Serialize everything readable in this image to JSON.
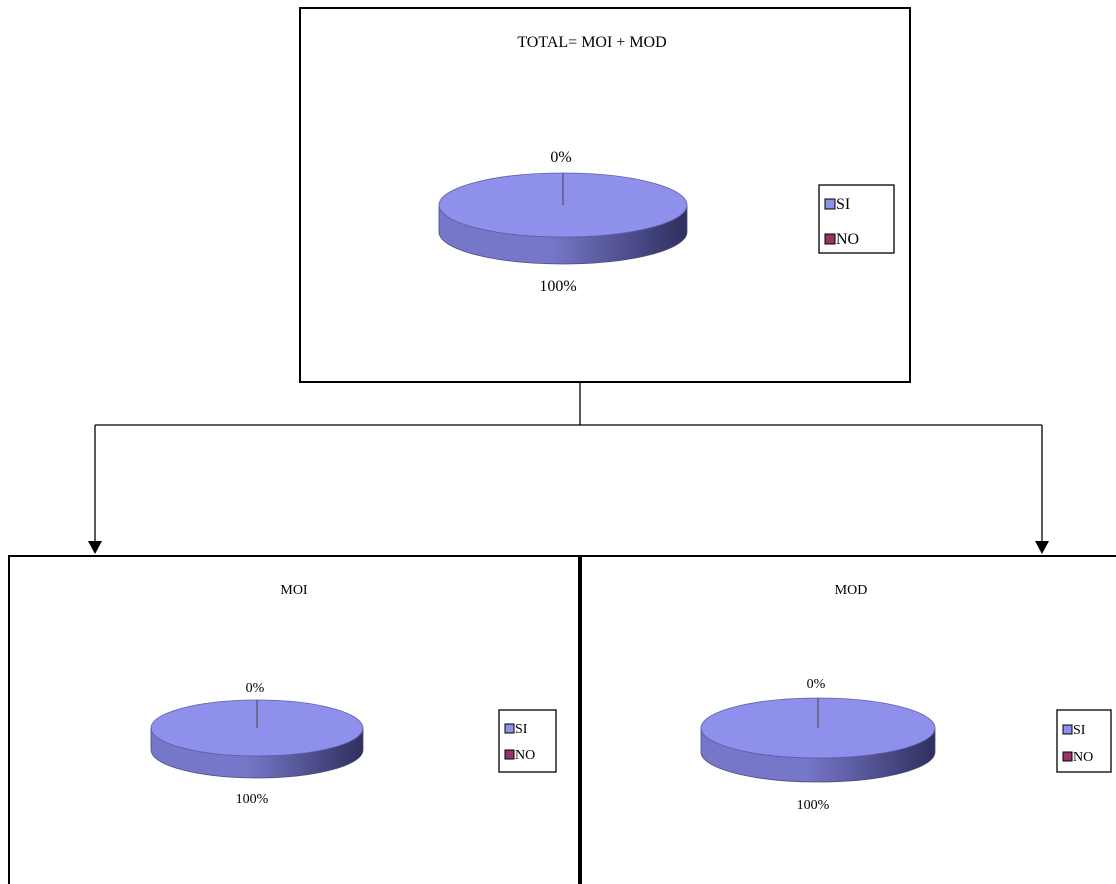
{
  "colors": {
    "si_face": "#8f8fec",
    "si_side_light": "#7777c9",
    "si_side_dark": "#2f2f5e",
    "no": "#993366",
    "border": "#000000",
    "text": "#000000"
  },
  "chart_data": [
    {
      "type": "pie",
      "title": "TOTAL= MOI + MOD",
      "categories": [
        "SI",
        "NO"
      ],
      "values": [
        100,
        0
      ],
      "labels": [
        "100%",
        "0%"
      ],
      "legend": {
        "entries": [
          "SI",
          "NO"
        ],
        "position": "right"
      }
    },
    {
      "type": "pie",
      "title": "MOI",
      "categories": [
        "SI",
        "NO"
      ],
      "values": [
        100,
        0
      ],
      "labels": [
        "100%",
        "0%"
      ],
      "legend": {
        "entries": [
          "SI",
          "NO"
        ],
        "position": "right"
      }
    },
    {
      "type": "pie",
      "title": "MOD",
      "categories": [
        "SI",
        "NO"
      ],
      "values": [
        100,
        0
      ],
      "labels": [
        "100%",
        "0%"
      ],
      "legend": {
        "entries": [
          "SI",
          "NO"
        ],
        "position": "right"
      }
    }
  ]
}
